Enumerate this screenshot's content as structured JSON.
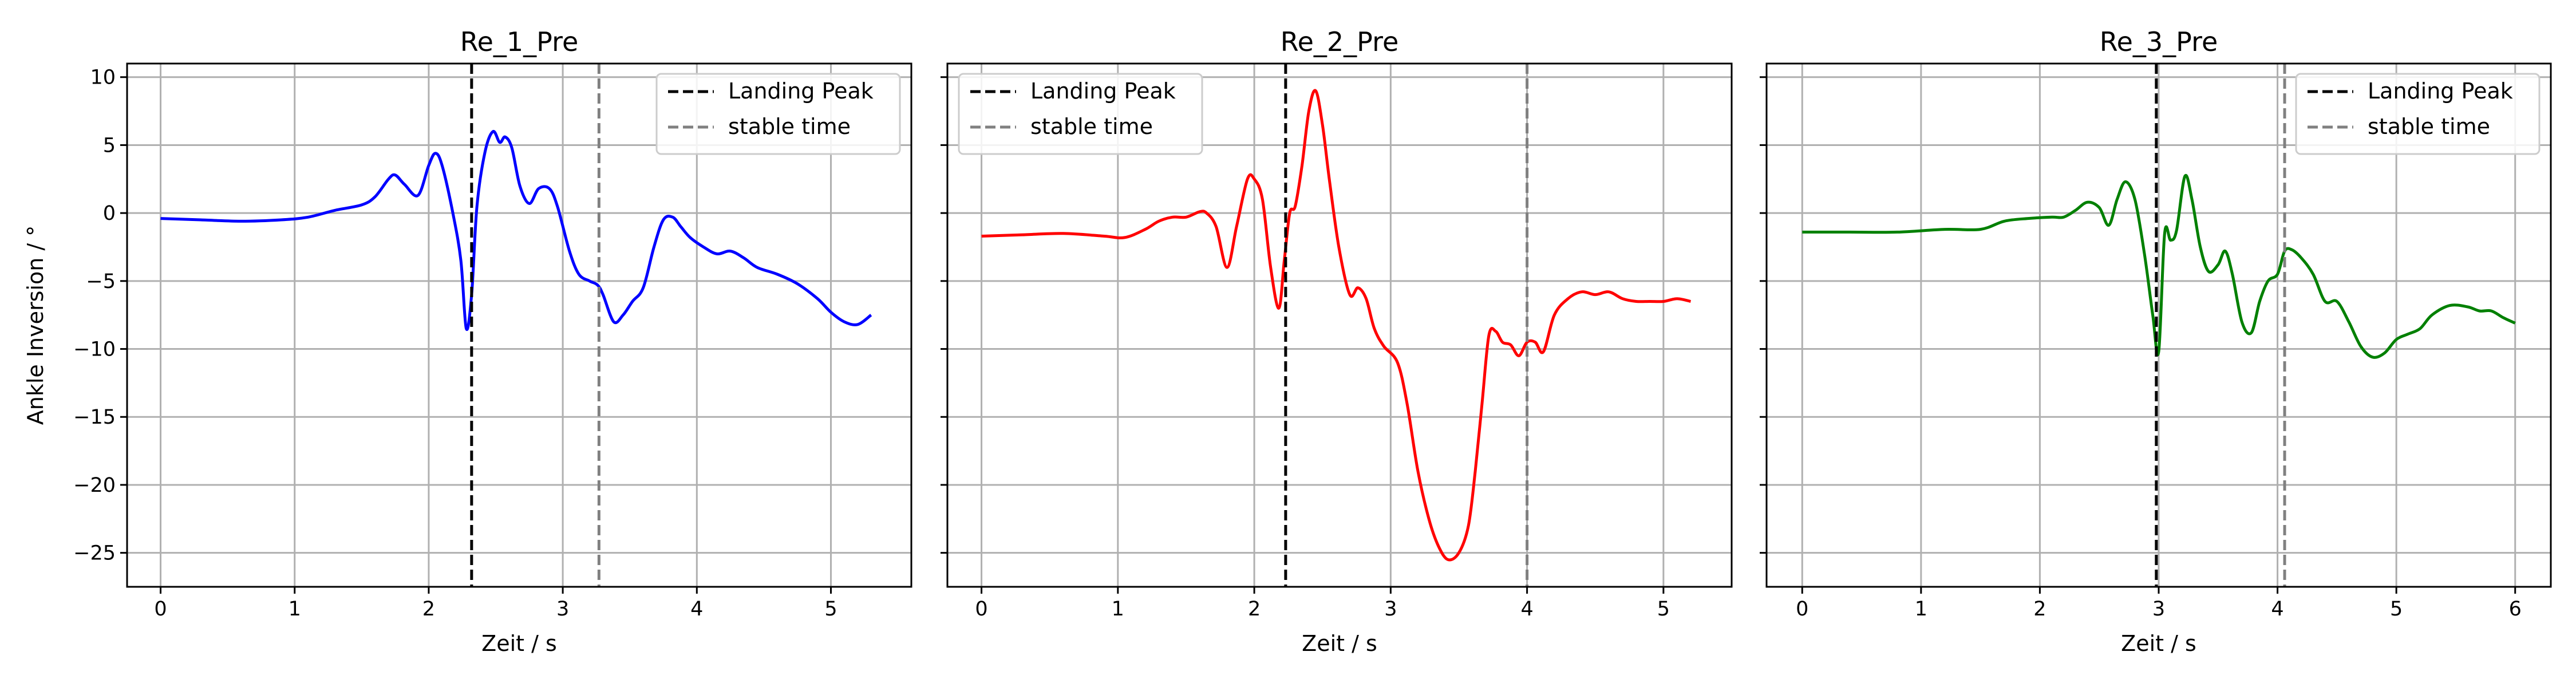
{
  "chart_data": [
    {
      "type": "line",
      "title": "Re_1_Pre",
      "xlabel": "Zeit / s",
      "ylabel": "Ankle Inversion / °",
      "xlim": [
        -0.25,
        5.6
      ],
      "ylim": [
        -27.5,
        11
      ],
      "xticks": [
        0,
        1,
        2,
        3,
        4,
        5
      ],
      "xtick_labels": [
        "0",
        "1",
        "2",
        "3",
        "4",
        "5"
      ],
      "yticks": [
        10,
        5,
        0,
        -5,
        -10,
        -15,
        -20,
        -25
      ],
      "ytick_labels": [
        "10",
        "5",
        "0",
        "−5",
        "−10",
        "−15",
        "−20",
        "−25"
      ],
      "grid": true,
      "legend_position": "upper-right",
      "series": [
        {
          "color": "#0000ff",
          "x": [
            0,
            0.3,
            0.6,
            0.9,
            1.1,
            1.3,
            1.5,
            1.6,
            1.7,
            1.75,
            1.82,
            1.92,
            2.0,
            2.05,
            2.1,
            2.18,
            2.24,
            2.28,
            2.32,
            2.36,
            2.42,
            2.48,
            2.53,
            2.57,
            2.62,
            2.68,
            2.75,
            2.82,
            2.9,
            2.96,
            3.05,
            3.12,
            3.2,
            3.26,
            3.3,
            3.38,
            3.45,
            3.52,
            3.6,
            3.68,
            3.75,
            3.82,
            3.88,
            3.95,
            4.05,
            4.15,
            4.25,
            4.35,
            4.45,
            4.6,
            4.75,
            4.9,
            5.0,
            5.1,
            5.2,
            5.3
          ],
          "y": [
            -0.4,
            -0.5,
            -0.6,
            -0.5,
            -0.3,
            0.2,
            0.6,
            1.2,
            2.5,
            2.8,
            2.1,
            1.3,
            3.5,
            4.4,
            3.5,
            0.0,
            -3.5,
            -8.5,
            -6.0,
            0.5,
            4.5,
            6.0,
            5.2,
            5.6,
            4.8,
            2.0,
            0.7,
            1.8,
            1.8,
            0.5,
            -2.8,
            -4.5,
            -5.0,
            -5.3,
            -6.0,
            -8.0,
            -7.5,
            -6.5,
            -5.5,
            -2.5,
            -0.5,
            -0.3,
            -1.0,
            -1.8,
            -2.5,
            -3.0,
            -2.8,
            -3.3,
            -4.0,
            -4.5,
            -5.2,
            -6.3,
            -7.3,
            -8.0,
            -8.2,
            -7.5
          ]
        }
      ],
      "vlines": [
        {
          "label": "Landing Peak",
          "x": 2.32,
          "color": "#000000"
        },
        {
          "label": "stable time",
          "x": 3.27,
          "color": "#808080"
        }
      ]
    },
    {
      "type": "line",
      "title": "Re_2_Pre",
      "xlabel": "Zeit / s",
      "ylabel": "",
      "xlim": [
        -0.25,
        5.5
      ],
      "ylim": [
        -27.5,
        11
      ],
      "xticks": [
        0,
        1,
        2,
        3,
        4,
        5
      ],
      "xtick_labels": [
        "0",
        "1",
        "2",
        "3",
        "4",
        "5"
      ],
      "yticks": [
        10,
        5,
        0,
        -5,
        -10,
        -15,
        -20,
        -25
      ],
      "ytick_labels": [
        "",
        "",
        "",
        "",
        "",
        "",
        "",
        ""
      ],
      "grid": true,
      "legend_position": "upper-left",
      "series": [
        {
          "color": "#ff0000",
          "x": [
            0,
            0.3,
            0.6,
            0.9,
            1.05,
            1.2,
            1.3,
            1.4,
            1.5,
            1.6,
            1.65,
            1.72,
            1.8,
            1.87,
            1.95,
            2.0,
            2.06,
            2.12,
            2.18,
            2.22,
            2.26,
            2.3,
            2.35,
            2.4,
            2.45,
            2.5,
            2.55,
            2.62,
            2.7,
            2.76,
            2.82,
            2.88,
            2.95,
            3.05,
            3.12,
            3.2,
            3.28,
            3.35,
            3.42,
            3.5,
            3.57,
            3.62,
            3.67,
            3.72,
            3.77,
            3.82,
            3.88,
            3.94,
            4.0,
            4.06,
            4.12,
            4.2,
            4.3,
            4.4,
            4.5,
            4.6,
            4.7,
            4.8,
            4.9,
            5.0,
            5.1,
            5.2
          ],
          "y": [
            -1.7,
            -1.6,
            -1.5,
            -1.7,
            -1.8,
            -1.2,
            -0.6,
            -0.3,
            -0.3,
            0.1,
            0.0,
            -1.0,
            -4.0,
            -1.0,
            2.5,
            2.5,
            1.0,
            -4.0,
            -7.0,
            -3.5,
            0.0,
            0.5,
            3.5,
            7.5,
            9.0,
            6.5,
            2.5,
            -2.5,
            -6.0,
            -5.5,
            -6.3,
            -8.5,
            -9.8,
            -11.0,
            -14.0,
            -19.0,
            -22.5,
            -24.5,
            -25.5,
            -25.0,
            -23.0,
            -19.0,
            -14.0,
            -9.0,
            -8.7,
            -9.5,
            -9.7,
            -10.5,
            -9.5,
            -9.5,
            -10.2,
            -7.5,
            -6.3,
            -5.8,
            -6.0,
            -5.8,
            -6.3,
            -6.5,
            -6.5,
            -6.5,
            -6.3,
            -6.5
          ]
        }
      ],
      "vlines": [
        {
          "label": "Landing Peak",
          "x": 2.23,
          "color": "#000000"
        },
        {
          "label": "stable time",
          "x": 4.0,
          "color": "#808080"
        }
      ]
    },
    {
      "type": "line",
      "title": "Re_3_Pre",
      "xlabel": "Zeit / s",
      "ylabel": "",
      "xlim": [
        -0.3,
        6.3
      ],
      "ylim": [
        -27.5,
        11
      ],
      "xticks": [
        0,
        1,
        2,
        3,
        4,
        5,
        6
      ],
      "xtick_labels": [
        "0",
        "1",
        "2",
        "3",
        "4",
        "5",
        "6"
      ],
      "yticks": [
        10,
        5,
        0,
        -5,
        -10,
        -15,
        -20,
        -25
      ],
      "ytick_labels": [
        "",
        "",
        "",
        "",
        "",
        "",
        "",
        ""
      ],
      "grid": true,
      "legend_position": "upper-right",
      "series": [
        {
          "color": "#008000",
          "x": [
            0,
            0.4,
            0.8,
            1.2,
            1.5,
            1.7,
            1.9,
            2.1,
            2.2,
            2.3,
            2.4,
            2.5,
            2.58,
            2.65,
            2.72,
            2.8,
            2.88,
            2.95,
            3.0,
            3.05,
            3.1,
            3.15,
            3.22,
            3.28,
            3.35,
            3.42,
            3.5,
            3.56,
            3.62,
            3.7,
            3.78,
            3.85,
            3.92,
            4.0,
            4.06,
            4.12,
            4.2,
            4.3,
            4.4,
            4.5,
            4.6,
            4.7,
            4.8,
            4.9,
            5.0,
            5.1,
            5.2,
            5.3,
            5.45,
            5.6,
            5.7,
            5.8,
            5.9,
            6.0
          ],
          "y": [
            -1.4,
            -1.4,
            -1.4,
            -1.2,
            -1.2,
            -0.6,
            -0.4,
            -0.3,
            -0.3,
            0.2,
            0.8,
            0.4,
            -0.9,
            1.0,
            2.3,
            1.0,
            -3.0,
            -7.5,
            -10.2,
            -1.5,
            -2.0,
            -1.3,
            2.7,
            1.0,
            -2.5,
            -4.3,
            -3.8,
            -2.8,
            -4.5,
            -8.0,
            -8.8,
            -6.5,
            -5.0,
            -4.5,
            -2.8,
            -2.7,
            -3.3,
            -4.5,
            -6.5,
            -6.5,
            -8.0,
            -9.8,
            -10.6,
            -10.3,
            -9.3,
            -8.9,
            -8.5,
            -7.5,
            -6.8,
            -6.9,
            -7.2,
            -7.2,
            -7.7,
            -8.1
          ]
        }
      ],
      "vlines": [
        {
          "label": "Landing Peak",
          "x": 2.98,
          "color": "#000000"
        },
        {
          "label": "stable time",
          "x": 4.06,
          "color": "#808080"
        }
      ]
    }
  ]
}
